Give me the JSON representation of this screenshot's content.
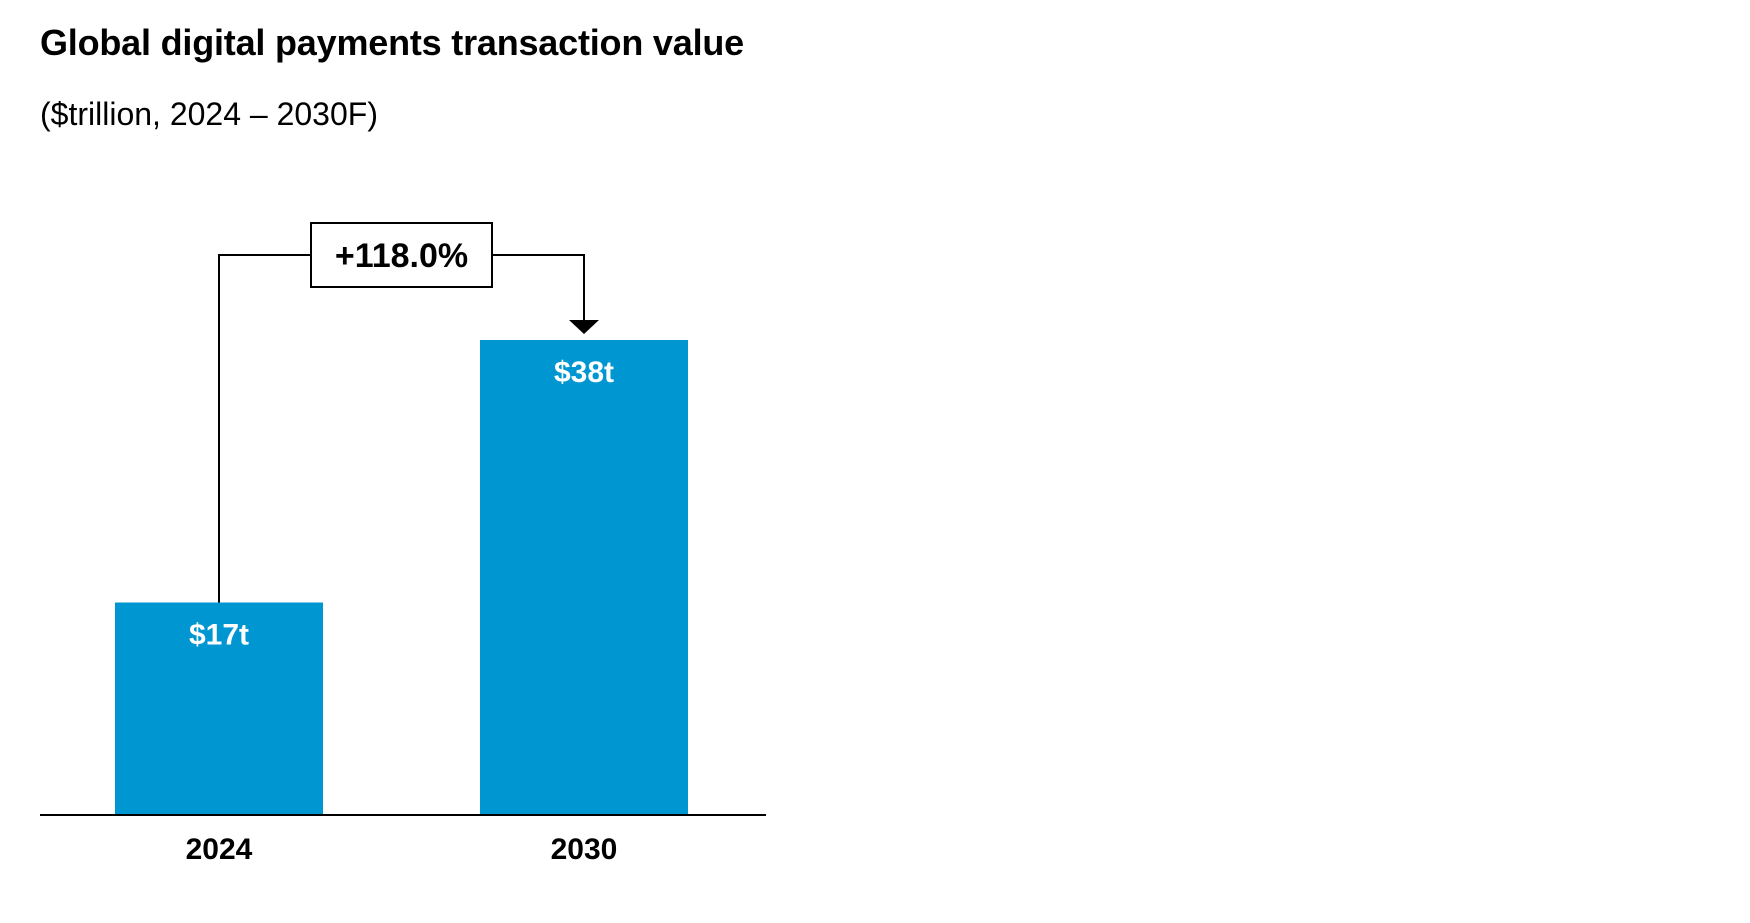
{
  "chart_data": {
    "type": "bar",
    "title": "Global digital payments transaction value",
    "subtitle": "($trillion, 2024 – 2030F)",
    "categories": [
      "2024",
      "2030"
    ],
    "values": [
      17,
      38
    ],
    "data_labels": [
      "$17t",
      "$38t"
    ],
    "annotation": {
      "label": "+118.0%",
      "from": "2024",
      "to": "2030"
    },
    "xlabel": "",
    "ylabel": "",
    "ylim": [
      0,
      38
    ],
    "grid": false,
    "legend": "none",
    "colors": {
      "bar": "#0096D2",
      "axis": "#000000",
      "text": "#000000",
      "bar_label": "#FFFFFF"
    }
  }
}
